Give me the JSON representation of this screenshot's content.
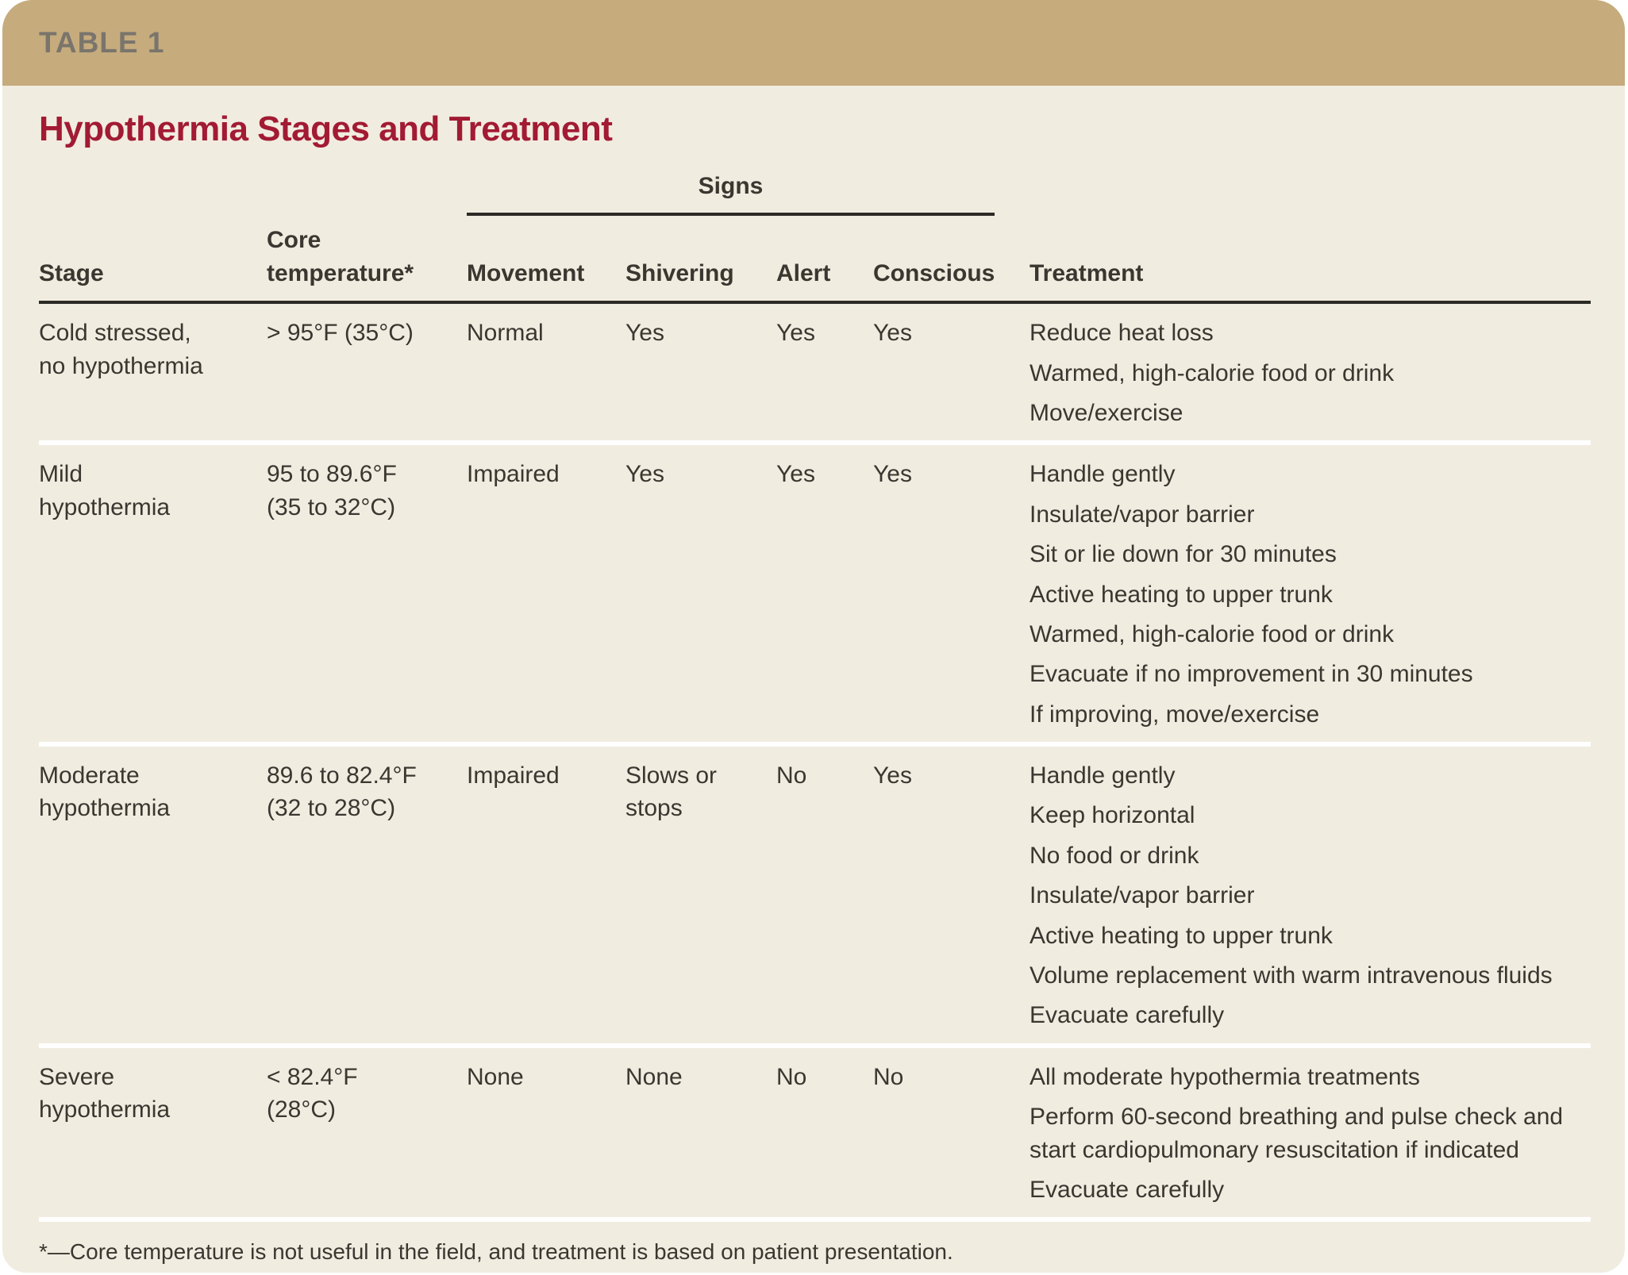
{
  "header": {
    "table_label": "TABLE 1",
    "title": "Hypothermia Stages and Treatment"
  },
  "table": {
    "signs_group_label": "Signs",
    "columns": {
      "stage": "Stage",
      "core_temp": "Core\ntemperature*",
      "movement": "Movement",
      "shivering": "Shivering",
      "alert": "Alert",
      "conscious": "Conscious",
      "treatment": "Treatment"
    },
    "rows": [
      {
        "stage": "Cold stressed,\nno hypothermia",
        "core_temp": "> 95°F (35°C)",
        "movement": "Normal",
        "shivering": "Yes",
        "alert": "Yes",
        "conscious": "Yes",
        "treatments": [
          "Reduce heat loss",
          "Warmed, high-calorie food or drink",
          "Move/exercise"
        ]
      },
      {
        "stage": "Mild\nhypothermia",
        "core_temp": "95 to 89.6°F\n(35 to 32°C)",
        "movement": "Impaired",
        "shivering": "Yes",
        "alert": "Yes",
        "conscious": "Yes",
        "treatments": [
          "Handle gently",
          "Insulate/vapor barrier",
          "Sit or lie down for 30 minutes",
          "Active heating to upper trunk",
          "Warmed, high-calorie food or drink",
          "Evacuate if no improvement in 30 minutes",
          "If improving, move/exercise"
        ]
      },
      {
        "stage": "Moderate\nhypothermia",
        "core_temp": "89.6 to 82.4°F\n(32 to 28°C)",
        "movement": "Impaired",
        "shivering": "Slows or\nstops",
        "alert": "No",
        "conscious": "Yes",
        "treatments": [
          "Handle gently",
          "Keep horizontal",
          "No food or drink",
          "Insulate/vapor barrier",
          "Active heating to upper trunk",
          "Volume replacement with warm intravenous fluids",
          "Evacuate carefully"
        ]
      },
      {
        "stage": "Severe\nhypothermia",
        "core_temp": "< 82.4°F\n(28°C)",
        "movement": "None",
        "shivering": "None",
        "alert": "No",
        "conscious": "No",
        "treatments": [
          "All moderate hypothermia treatments",
          "Perform 60-second breathing and pulse check and start cardiopulmonary resuscitation if indicated",
          "Evacuate carefully"
        ]
      }
    ]
  },
  "footnote": "*—Core temperature is not useful in the field, and treatment is based on patient presentation.",
  "colors": {
    "tan": "#c6ab7d",
    "cream": "#f1ece0",
    "maroon": "#a21a33",
    "ink": "#3a3731",
    "gray_label": "#7a756c",
    "rule": "#2b2a26",
    "sep": "#ffffff"
  }
}
